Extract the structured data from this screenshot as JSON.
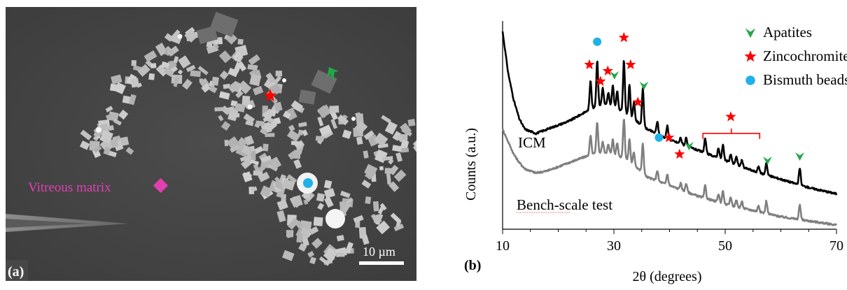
{
  "panel_a": {
    "label": "(a)",
    "matrix_label": "Vitreous matrix",
    "scale_label": "10 µm",
    "colors": {
      "background": "#474747",
      "crystal": "#bdbdbd",
      "dark_crystal": "#6e6e6e",
      "matrix_label": "#e040b0",
      "star": "#ff0000",
      "bead": "#1fb1e8",
      "apatite": "#21a84a"
    }
  },
  "panel_b": {
    "label": "(b)",
    "curve_labels": {
      "icm": "ICM",
      "bench": "Bench-scale test"
    },
    "legend": [
      {
        "label": "Apatites",
        "marker": "triangle-icon",
        "color": "#21a84a"
      },
      {
        "label": "Zincochromites",
        "marker": "star-icon",
        "color": "#ff0000"
      },
      {
        "label": "Bismuth beads",
        "marker": "circle-icon",
        "color": "#1fb1e8"
      }
    ],
    "colors": {
      "icm": "#000000",
      "bench": "#7f7f7f",
      "bracket": "#ff0000"
    }
  },
  "chart_data": {
    "type": "line",
    "xlabel": "2θ (degrees)",
    "ylabel": "Counts (a.u.)",
    "xlim": [
      10,
      70
    ],
    "x_ticks": [
      10,
      30,
      50,
      70
    ],
    "x_tick_labels": [
      "10",
      "30",
      "50",
      "70"
    ],
    "ylim": [
      0,
      100
    ],
    "grid": false,
    "legend_position": "top-right",
    "series": [
      {
        "name": "ICM",
        "color": "#000000",
        "background": [
          [
            10,
            95
          ],
          [
            11,
            75
          ],
          [
            12,
            62
          ],
          [
            13,
            53
          ],
          [
            14,
            48
          ],
          [
            16,
            46
          ],
          [
            18,
            48
          ],
          [
            20,
            50
          ],
          [
            22,
            52
          ],
          [
            24,
            55
          ],
          [
            26,
            58
          ],
          [
            28,
            60
          ],
          [
            30,
            59
          ],
          [
            32,
            56
          ],
          [
            34,
            52
          ],
          [
            36,
            48
          ],
          [
            40,
            43
          ],
          [
            45,
            38
          ],
          [
            50,
            33
          ],
          [
            55,
            28
          ],
          [
            60,
            24
          ],
          [
            65,
            20
          ],
          [
            70,
            17
          ]
        ],
        "peaks": [
          [
            25.8,
            14
          ],
          [
            27.0,
            22
          ],
          [
            28.0,
            8
          ],
          [
            29.0,
            6
          ],
          [
            29.8,
            10
          ],
          [
            30.6,
            8
          ],
          [
            31.8,
            25
          ],
          [
            32.8,
            15
          ],
          [
            33.6,
            8
          ],
          [
            35.2,
            18
          ],
          [
            37.8,
            6
          ],
          [
            39.6,
            6
          ],
          [
            42.0,
            3
          ],
          [
            43.0,
            4
          ],
          [
            46.4,
            7
          ],
          [
            48.8,
            5
          ],
          [
            49.6,
            7
          ],
          [
            51.0,
            4
          ],
          [
            52.0,
            4
          ],
          [
            53.0,
            3
          ],
          [
            56.0,
            3
          ],
          [
            57.4,
            6
          ],
          [
            63.4,
            8
          ]
        ]
      },
      {
        "name": "Bench-scale test",
        "color": "#7f7f7f",
        "background": [
          [
            10,
            48
          ],
          [
            11,
            42
          ],
          [
            12,
            36
          ],
          [
            13,
            32
          ],
          [
            14,
            29
          ],
          [
            16,
            27
          ],
          [
            18,
            28
          ],
          [
            20,
            30
          ],
          [
            22,
            32
          ],
          [
            24,
            34
          ],
          [
            26,
            36
          ],
          [
            28,
            37
          ],
          [
            30,
            36
          ],
          [
            32,
            34
          ],
          [
            34,
            30
          ],
          [
            36,
            25
          ],
          [
            40,
            21
          ],
          [
            45,
            16
          ],
          [
            50,
            12
          ],
          [
            55,
            9
          ],
          [
            60,
            6
          ],
          [
            65,
            4
          ],
          [
            70,
            2
          ]
        ],
        "peaks": [
          [
            25.8,
            9
          ],
          [
            27.0,
            15
          ],
          [
            28.0,
            5
          ],
          [
            29.0,
            4
          ],
          [
            29.8,
            7
          ],
          [
            30.6,
            6
          ],
          [
            31.8,
            19
          ],
          [
            32.8,
            11
          ],
          [
            33.6,
            6
          ],
          [
            35.2,
            14
          ],
          [
            37.8,
            5
          ],
          [
            39.6,
            5
          ],
          [
            42.0,
            3
          ],
          [
            43.0,
            4
          ],
          [
            46.4,
            6
          ],
          [
            48.8,
            4
          ],
          [
            49.6,
            6
          ],
          [
            51.0,
            4
          ],
          [
            52.0,
            3
          ],
          [
            53.0,
            3
          ],
          [
            56.0,
            3
          ],
          [
            57.4,
            6
          ],
          [
            63.4,
            7
          ]
        ]
      }
    ],
    "annotations": [
      {
        "kind": "circle-icon",
        "phase": "Bismuth beads",
        "x": 27.0,
        "y": 90
      },
      {
        "kind": "star-icon",
        "phase": "Zincochromites",
        "x": 31.8,
        "y": 92
      },
      {
        "kind": "star-icon",
        "phase": "Zincochromites",
        "x": 25.6,
        "y": 79
      },
      {
        "kind": "star-icon",
        "phase": "Zincochromites",
        "x": 28.9,
        "y": 76
      },
      {
        "kind": "star-icon",
        "phase": "Zincochromites",
        "x": 33.0,
        "y": 79
      },
      {
        "kind": "star-icon",
        "phase": "Zincochromites",
        "x": 27.6,
        "y": 71
      },
      {
        "kind": "triangle-icon",
        "phase": "Apatites",
        "x": 30.1,
        "y": 74
      },
      {
        "kind": "triangle-icon",
        "phase": "Apatites",
        "x": 35.4,
        "y": 69
      },
      {
        "kind": "star-icon",
        "phase": "Zincochromites",
        "x": 34.3,
        "y": 61
      },
      {
        "kind": "circle-icon",
        "phase": "Bismuth beads",
        "x": 38.1,
        "y": 44
      },
      {
        "kind": "star-icon",
        "phase": "Zincochromites",
        "x": 39.9,
        "y": 44
      },
      {
        "kind": "star-icon",
        "phase": "Zincochromites",
        "x": 41.8,
        "y": 36
      },
      {
        "kind": "triangle-icon",
        "phase": "Apatites",
        "x": 43.5,
        "y": 40
      },
      {
        "kind": "star-icon",
        "phase": "Zincochromites",
        "x": 51.0,
        "y": 54
      },
      {
        "kind": "triangle-icon",
        "phase": "Apatites",
        "x": 57.6,
        "y": 33
      },
      {
        "kind": "triangle-icon",
        "phase": "Apatites",
        "x": 63.4,
        "y": 35
      }
    ],
    "bracket": {
      "x_start": 46.0,
      "x_end": 56.2,
      "y": 46
    }
  }
}
